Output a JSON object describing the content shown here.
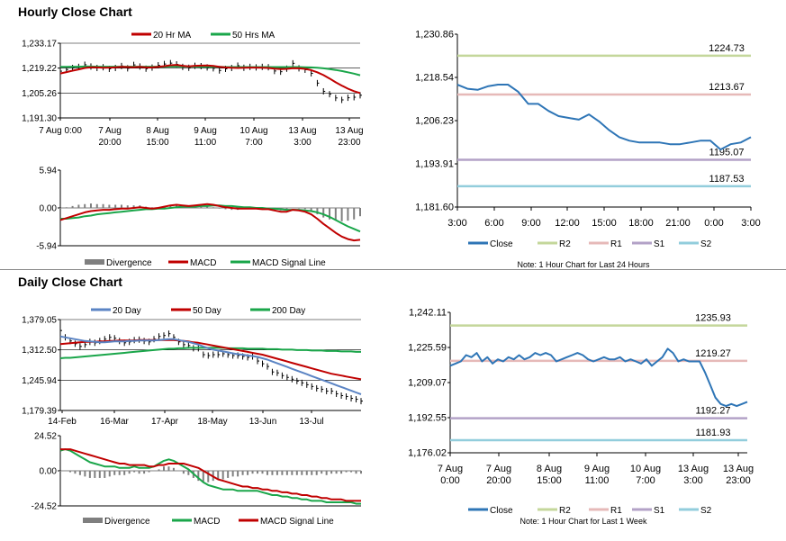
{
  "hourly_title": "Hourly Close Chart",
  "daily_title": "Daily Close Chart",
  "colors": {
    "red": "#c00000",
    "green": "#1aa64a",
    "blue": "#5b84c4",
    "grey": "#7f7f7f",
    "r2": "#c4d79b",
    "r1": "#e6b9b8",
    "s1": "#b3a2c7",
    "s2": "#92cddc",
    "close": "#2e75b6"
  },
  "chart_data": [
    {
      "id": "hourly_price",
      "type": "line",
      "legend": [
        "20 Hr MA",
        "50 Hrs MA"
      ],
      "y_ticks": [
        "1,233.17",
        "1,219.22",
        "1,205.26",
        "1,191.30"
      ],
      "ylim": [
        1191.3,
        1233.17
      ],
      "x_ticks": [
        [
          "7 Aug 0:00",
          ""
        ],
        [
          "7 Aug",
          "20:00"
        ],
        [
          "8 Aug",
          "15:00"
        ],
        [
          "9 Aug",
          "11:00"
        ],
        [
          "10 Aug",
          "7:00"
        ],
        [
          "13 Aug",
          "3:00"
        ],
        [
          "13 Aug",
          "23:00"
        ]
      ],
      "series": [
        {
          "name": "Close",
          "values": [
            1217.5,
            1218.4,
            1219.3,
            1219.9,
            1221.1,
            1220.1,
            1219.3,
            1219.7,
            1218.8,
            1219.3,
            1220.4,
            1219.1,
            1221.0,
            1220.1,
            1218.9,
            1219.5,
            1220.8,
            1221.5,
            1222.0,
            1221.3,
            1219.9,
            1219.4,
            1220.5,
            1220.3,
            1219.6,
            1219.1,
            1217.9,
            1218.8,
            1219.3,
            1220.6,
            1219.4,
            1219.9,
            1219.6,
            1219.9,
            1219.7,
            1217.6,
            1217.2,
            1218.9,
            1221.9,
            1219.1,
            1218.3,
            1216.3,
            1210.8,
            1206.2,
            1204.6,
            1202.5,
            1201.4,
            1202.6,
            1202.9,
            1204.0
          ]
        },
        {
          "name": "20 Hr MA",
          "values": [
            1216.2,
            1217.0,
            1217.8,
            1218.5,
            1219.3,
            1219.7,
            1219.6,
            1219.4,
            1219.5,
            1219.6,
            1219.9,
            1219.8,
            1219.7,
            1219.9,
            1219.6,
            1219.6,
            1219.9,
            1220.3,
            1220.8,
            1221.0,
            1220.5,
            1220.2,
            1220.5,
            1220.6,
            1220.7,
            1220.4,
            1219.9,
            1219.6,
            1219.4,
            1219.3,
            1219.4,
            1219.5,
            1219.5,
            1219.4,
            1219.3,
            1218.9,
            1218.7,
            1218.8,
            1219.2,
            1219.1,
            1218.8,
            1218.1,
            1216.9,
            1215.3,
            1213.4,
            1211.3,
            1209.4,
            1207.7,
            1206.3,
            1205.2
          ]
        },
        {
          "name": "50 Hrs MA",
          "values": [
            1219.9,
            1219.9,
            1220.0,
            1220.0,
            1220.1,
            1220.1,
            1220.0,
            1220.0,
            1220.0,
            1220.0,
            1220.0,
            1220.0,
            1220.0,
            1220.0,
            1220.0,
            1220.0,
            1220.0,
            1220.0,
            1220.1,
            1220.1,
            1220.1,
            1220.1,
            1220.1,
            1220.0,
            1220.0,
            1220.0,
            1219.9,
            1219.8,
            1219.8,
            1219.8,
            1219.8,
            1219.8,
            1219.8,
            1219.8,
            1219.8,
            1219.8,
            1219.8,
            1219.8,
            1219.8,
            1219.8,
            1219.7,
            1219.6,
            1219.4,
            1219.1,
            1218.7,
            1218.2,
            1217.6,
            1216.9,
            1216.1,
            1215.2
          ]
        }
      ]
    },
    {
      "id": "hourly_macd",
      "type": "line",
      "legend": [
        "Divergence",
        "MACD",
        "MACD Signal Line"
      ],
      "y_ticks": [
        "5.94",
        "0.00",
        "-5.94"
      ],
      "ylim": [
        -5.94,
        5.94
      ],
      "series": [
        {
          "name": "MACD",
          "values": [
            -1.9,
            -1.6,
            -1.3,
            -1.0,
            -0.7,
            -0.5,
            -0.4,
            -0.3,
            -0.3,
            -0.2,
            -0.1,
            -0.1,
            0.0,
            0.1,
            0.0,
            -0.1,
            0.0,
            0.2,
            0.4,
            0.5,
            0.4,
            0.3,
            0.4,
            0.5,
            0.6,
            0.5,
            0.3,
            0.1,
            0.0,
            -0.1,
            -0.1,
            -0.1,
            -0.1,
            -0.2,
            -0.2,
            -0.4,
            -0.6,
            -0.6,
            -0.3,
            -0.4,
            -0.6,
            -1.0,
            -1.7,
            -2.5,
            -3.2,
            -3.9,
            -4.5,
            -4.9,
            -5.1,
            -5.0
          ]
        },
        {
          "name": "MACD Signal Line",
          "values": [
            -1.7,
            -1.7,
            -1.6,
            -1.5,
            -1.3,
            -1.2,
            -1.0,
            -0.9,
            -0.8,
            -0.7,
            -0.6,
            -0.5,
            -0.4,
            -0.3,
            -0.2,
            -0.2,
            -0.1,
            -0.1,
            0.0,
            0.1,
            0.2,
            0.2,
            0.2,
            0.3,
            0.3,
            0.4,
            0.4,
            0.3,
            0.3,
            0.2,
            0.1,
            0.1,
            0.0,
            0.0,
            -0.1,
            -0.1,
            -0.2,
            -0.3,
            -0.3,
            -0.3,
            -0.4,
            -0.5,
            -0.7,
            -1.0,
            -1.4,
            -1.9,
            -2.4,
            -2.9,
            -3.3,
            -3.7
          ]
        }
      ]
    },
    {
      "id": "hourly_levels",
      "type": "line",
      "legend": [
        "Close",
        "R2",
        "R1",
        "S1",
        "S2"
      ],
      "y_ticks": [
        "1,230.86",
        "1,218.54",
        "1,206.23",
        "1,193.91",
        "1,181.60"
      ],
      "ylim": [
        1181.6,
        1230.86
      ],
      "x_ticks": [
        "3:00",
        "6:00",
        "9:00",
        "12:00",
        "15:00",
        "18:00",
        "21:00",
        "0:00",
        "3:00"
      ],
      "levels": [
        {
          "name": "R2",
          "value": 1224.73,
          "label": "1224.73"
        },
        {
          "name": "R1",
          "value": 1213.67,
          "label": "1213.67"
        },
        {
          "name": "S1",
          "value": 1195.07,
          "label": "1195.07"
        },
        {
          "name": "S2",
          "value": 1187.53,
          "label": "1187.53"
        }
      ],
      "series": [
        {
          "name": "Close",
          "values": [
            1216.5,
            1215.3,
            1215.0,
            1216.0,
            1216.5,
            1216.5,
            1214.5,
            1211.0,
            1211.0,
            1209.0,
            1207.5,
            1207.0,
            1206.5,
            1208.0,
            1206.0,
            1203.5,
            1201.5,
            1200.5,
            1200.0,
            1200.0,
            1200.0,
            1199.5,
            1199.5,
            1200.0,
            1200.5,
            1200.5,
            1198.0,
            1199.5,
            1200.0,
            1201.5
          ]
        }
      ],
      "note": "Note: 1 Hour Chart for Last 24 Hours"
    },
    {
      "id": "daily_price",
      "type": "line",
      "legend": [
        "20 Day",
        "50 Day",
        "200 Day"
      ],
      "y_ticks": [
        "1,379.05",
        "1,312.50",
        "1,245.94",
        "1,179.39"
      ],
      "ylim": [
        1179.39,
        1379.05
      ],
      "x_ticks": [
        "14-Feb",
        "16-Mar",
        "17-Apr",
        "18-May",
        "13-Jun",
        "13-Jul"
      ],
      "series": [
        {
          "name": "Close",
          "values": [
            1355,
            1340,
            1332,
            1326,
            1320,
            1324,
            1330,
            1328,
            1332,
            1336,
            1340,
            1338,
            1332,
            1328,
            1330,
            1334,
            1335,
            1332,
            1330,
            1336,
            1342,
            1344,
            1348,
            1340,
            1330,
            1324,
            1322,
            1316,
            1316,
            1302,
            1300,
            1302,
            1302,
            1304,
            1302,
            1300,
            1300,
            1298,
            1296,
            1298,
            1288,
            1282,
            1276,
            1264,
            1262,
            1256,
            1252,
            1248,
            1244,
            1240,
            1236,
            1232,
            1228,
            1226,
            1222,
            1222,
            1216,
            1212,
            1210,
            1206,
            1204,
            1200
          ]
        },
        {
          "name": "20 Day",
          "values": [
            1342,
            1340,
            1338,
            1336,
            1334,
            1332,
            1331,
            1330,
            1329,
            1329,
            1330,
            1331,
            1331,
            1331,
            1332,
            1332,
            1333,
            1333,
            1333,
            1333,
            1334,
            1335,
            1336,
            1336,
            1334,
            1332,
            1330,
            1327,
            1324,
            1320,
            1316,
            1313,
            1311,
            1309,
            1307,
            1305,
            1303,
            1302,
            1300,
            1299,
            1297,
            1294,
            1291,
            1287,
            1283,
            1279,
            1275,
            1271,
            1267,
            1263,
            1259,
            1255,
            1251,
            1247,
            1243,
            1239,
            1235,
            1231,
            1227,
            1223,
            1219,
            1215
          ]
        },
        {
          "name": "50 Day",
          "values": [
            1325,
            1326,
            1327,
            1328,
            1329,
            1330,
            1330,
            1330,
            1331,
            1331,
            1332,
            1332,
            1333,
            1333,
            1333,
            1333,
            1334,
            1334,
            1334,
            1334,
            1334,
            1334,
            1334,
            1334,
            1333,
            1332,
            1331,
            1329,
            1328,
            1326,
            1324,
            1322,
            1320,
            1318,
            1316,
            1314,
            1312,
            1310,
            1308,
            1306,
            1304,
            1302,
            1299,
            1296,
            1293,
            1290,
            1287,
            1284,
            1281,
            1278,
            1275,
            1272,
            1269,
            1266,
            1263,
            1260,
            1258,
            1256,
            1254,
            1252,
            1250,
            1248
          ]
        },
        {
          "name": "200 Day",
          "values": [
            1294,
            1295,
            1295,
            1296,
            1297,
            1298,
            1299,
            1300,
            1301,
            1302,
            1303,
            1304,
            1305,
            1306,
            1307,
            1308,
            1309,
            1310,
            1311,
            1312,
            1313,
            1314,
            1315,
            1315,
            1316,
            1316,
            1317,
            1317,
            1317,
            1317,
            1317,
            1317,
            1317,
            1317,
            1316,
            1316,
            1316,
            1316,
            1315,
            1315,
            1315,
            1315,
            1314,
            1314,
            1314,
            1313,
            1313,
            1313,
            1312,
            1312,
            1312,
            1311,
            1311,
            1311,
            1310,
            1310,
            1310,
            1309,
            1309,
            1309,
            1308,
            1308
          ]
        }
      ]
    },
    {
      "id": "daily_macd",
      "type": "line",
      "legend": [
        "Divergence",
        "MACD",
        "MACD Signal Line"
      ],
      "y_ticks": [
        "24.52",
        "0.00",
        "-24.52"
      ],
      "ylim": [
        -24.52,
        24.52
      ],
      "series": [
        {
          "name": "MACD",
          "values": [
            14,
            15,
            14,
            12,
            10,
            8,
            6,
            5,
            4,
            3,
            3,
            3,
            2,
            2,
            2,
            3,
            2,
            2,
            2,
            3,
            5,
            7,
            8,
            7,
            5,
            3,
            1,
            -2,
            -5,
            -8,
            -10,
            -11,
            -12,
            -13,
            -13,
            -13,
            -14,
            -14,
            -14,
            -14,
            -14,
            -15,
            -16,
            -17,
            -17,
            -18,
            -18,
            -19,
            -19,
            -20,
            -20,
            -21,
            -21,
            -21,
            -22,
            -22,
            -22,
            -22,
            -22,
            -22,
            -23,
            -23
          ]
        },
        {
          "name": "MACD Signal Line",
          "values": [
            15,
            15,
            15,
            14,
            13,
            12,
            11,
            10,
            9,
            8,
            7,
            6,
            5,
            5,
            4,
            4,
            4,
            4,
            3,
            3,
            4,
            4,
            5,
            5,
            5,
            5,
            4,
            3,
            2,
            0,
            -2,
            -4,
            -6,
            -7,
            -8,
            -9,
            -10,
            -11,
            -11,
            -12,
            -12,
            -13,
            -13,
            -14,
            -14,
            -15,
            -15,
            -16,
            -16,
            -17,
            -17,
            -18,
            -18,
            -19,
            -19,
            -20,
            -20,
            -20,
            -21,
            -21,
            -21,
            -21
          ]
        }
      ]
    },
    {
      "id": "daily_levels",
      "type": "line",
      "legend": [
        "Close",
        "R2",
        "R1",
        "S1",
        "S2"
      ],
      "y_ticks": [
        "1,242.11",
        "1,225.59",
        "1,209.07",
        "1,192.55",
        "1,176.02"
      ],
      "ylim": [
        1176.02,
        1242.11
      ],
      "x_ticks": [
        [
          "7 Aug",
          "0:00"
        ],
        [
          "7 Aug",
          "20:00"
        ],
        [
          "8 Aug",
          "15:00"
        ],
        [
          "9 Aug",
          "11:00"
        ],
        [
          "10 Aug",
          "7:00"
        ],
        [
          "13 Aug",
          "3:00"
        ],
        [
          "13 Aug",
          "23:00"
        ]
      ],
      "levels": [
        {
          "name": "R2",
          "value": 1235.93,
          "label": "1235.93"
        },
        {
          "name": "R1",
          "value": 1219.27,
          "label": "1219.27"
        },
        {
          "name": "S1",
          "value": 1192.27,
          "label": "1192.27"
        },
        {
          "name": "S2",
          "value": 1181.93,
          "label": "1181.93"
        }
      ],
      "series": [
        {
          "name": "Close",
          "values": [
            1217,
            1218,
            1219,
            1222,
            1221,
            1223,
            1219,
            1221,
            1218,
            1220,
            1219,
            1221,
            1220,
            1222,
            1220,
            1221,
            1223,
            1222,
            1223,
            1222,
            1219,
            1220,
            1221,
            1222,
            1223,
            1222,
            1220,
            1219,
            1220,
            1221,
            1220,
            1220,
            1221,
            1219,
            1220,
            1219,
            1218,
            1220,
            1217,
            1219,
            1221,
            1225,
            1223,
            1219,
            1220,
            1219,
            1219,
            1219,
            1214,
            1208,
            1202,
            1199,
            1198,
            1199,
            1198,
            1199,
            1200
          ]
        }
      ],
      "note": "Note: 1 Hour Chart for Last 1 Week"
    }
  ]
}
